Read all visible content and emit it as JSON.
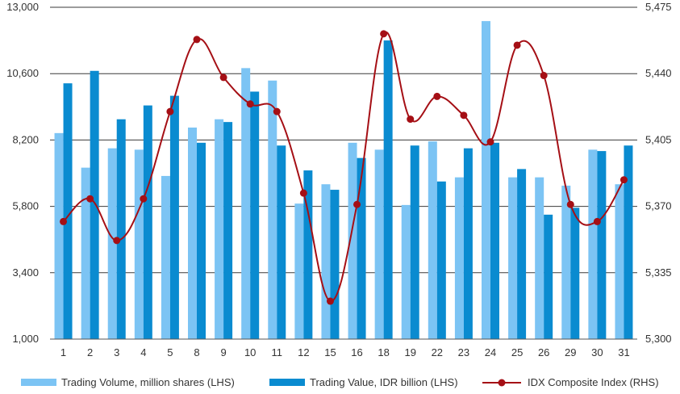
{
  "chart_data": {
    "type": "bar",
    "categories": [
      "1",
      "2",
      "3",
      "4",
      "5",
      "8",
      "9",
      "10",
      "11",
      "12",
      "15",
      "16",
      "18",
      "19",
      "22",
      "23",
      "24",
      "25",
      "26",
      "29",
      "30",
      "31"
    ],
    "left_axis": {
      "min": 1000,
      "max": 13000,
      "ticks": [
        1000,
        3400,
        5800,
        8200,
        10600,
        13000
      ],
      "tick_labels": [
        "1,000",
        "3,400",
        "5,800",
        "8,200",
        "10,600",
        "13,000"
      ]
    },
    "right_axis": {
      "min": 5300,
      "max": 5475,
      "ticks": [
        5300,
        5335,
        5370,
        5405,
        5440,
        5475
      ],
      "tick_labels": [
        "5,300",
        "5,335",
        "5,370",
        "5,405",
        "5,440",
        "5,475"
      ]
    },
    "grid": "horizontal",
    "legend_position": "bottom",
    "series": [
      {
        "name": "Trading Volume, million shares (LHS)",
        "kind": "bar",
        "axis": "left",
        "color": "#7cc4f4",
        "values": [
          8450,
          7200,
          7900,
          7850,
          6900,
          8650,
          8950,
          10800,
          10350,
          5900,
          6600,
          8100,
          7850,
          5850,
          8150,
          6850,
          12500,
          6850,
          6850,
          6550,
          7850,
          6600
        ]
      },
      {
        "name": "Trading Value, IDR billion (LHS)",
        "kind": "bar",
        "axis": "left",
        "color": "#0a8bd0",
        "values": [
          10250,
          10700,
          8950,
          9450,
          9800,
          8100,
          8850,
          9950,
          8000,
          7100,
          6400,
          7550,
          11800,
          8000,
          6700,
          7900,
          8100,
          7150,
          5500,
          5750,
          7800,
          8000
        ]
      },
      {
        "name": "IDX Composite Index (RHS)",
        "kind": "line",
        "axis": "right",
        "color": "#a50f15",
        "values": [
          5362,
          5374,
          5352,
          5374,
          5420,
          5458,
          5438,
          5424,
          5420,
          5377,
          5320,
          5371,
          5461,
          5416,
          5428,
          5418,
          5404,
          5455,
          5439,
          5371,
          5362,
          5384
        ]
      }
    ]
  }
}
